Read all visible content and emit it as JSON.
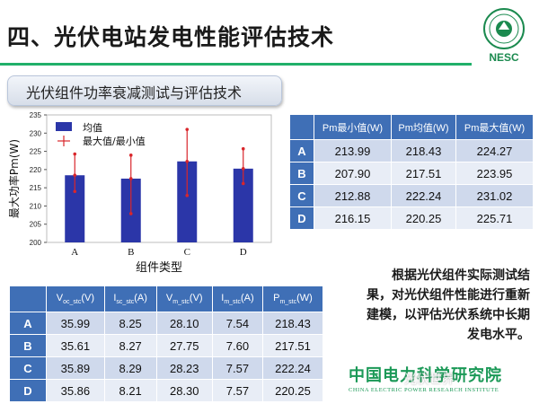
{
  "slide": {
    "title": "四、光伏电站发电性能评估技术",
    "subtitle": "光伏组件功率衰减测试与评估技术",
    "logo_text": "NESC",
    "note_lines": [
      "根据光伏组件实际测试结",
      "果，对光伏组件性能进行重新",
      "建模，以评估光伏系统中长期",
      "发电水平。"
    ],
    "institute_cn": "中国电力科学研究院",
    "institute_en": "CHINA ELECTRIC POWER RESEARCH INSTITUTE",
    "watermark": "光伏世界",
    "colors": {
      "title_line": "#20b06a",
      "bar": "#2b36a8",
      "errorbar": "#d9262b",
      "table_header": "#3f6fb6",
      "green_text": "#1b9957"
    }
  },
  "chart_data": {
    "type": "bar",
    "categories": [
      "A",
      "B",
      "C",
      "D"
    ],
    "series": [
      {
        "name": "均值",
        "values": [
          218.43,
          217.51,
          222.24,
          220.25
        ]
      },
      {
        "name": "最大值/最小值",
        "min": [
          213.99,
          207.9,
          212.88,
          216.15
        ],
        "max": [
          224.27,
          223.95,
          231.02,
          225.71
        ]
      }
    ],
    "xlabel": "组件类型",
    "ylabel": "最大功率Pm(W)",
    "ylim": [
      200,
      235
    ],
    "yticks": [
      200,
      205,
      210,
      215,
      220,
      225,
      230,
      235
    ],
    "legend_position": "top-left",
    "grid": false
  },
  "table_pm": {
    "headers": [
      "",
      "Pm最小值(W)",
      "Pm均值(W)",
      "Pm最大值(W)"
    ],
    "rows": [
      [
        "A",
        "213.99",
        "218.43",
        "224.27"
      ],
      [
        "B",
        "207.90",
        "217.51",
        "223.95"
      ],
      [
        "C",
        "212.88",
        "222.24",
        "231.02"
      ],
      [
        "D",
        "216.15",
        "220.25",
        "225.71"
      ]
    ]
  },
  "table_stc": {
    "headers": [
      {
        "main": "",
        "sub": "",
        "unit": ""
      },
      {
        "main": "V",
        "sub": "oc_stc",
        "unit": "(V)"
      },
      {
        "main": "I",
        "sub": "sc_stc",
        "unit": "(A)"
      },
      {
        "main": "V",
        "sub": "m_stc",
        "unit": "(V)"
      },
      {
        "main": "I",
        "sub": "m_stc",
        "unit": "(A)"
      },
      {
        "main": "P",
        "sub": "m_stc",
        "unit": "(W)"
      }
    ],
    "rows": [
      [
        "A",
        "35.99",
        "8.25",
        "28.10",
        "7.54",
        "218.43"
      ],
      [
        "B",
        "35.61",
        "8.27",
        "27.75",
        "7.60",
        "217.51"
      ],
      [
        "C",
        "35.89",
        "8.29",
        "28.23",
        "7.57",
        "222.24"
      ],
      [
        "D",
        "35.86",
        "8.21",
        "28.30",
        "7.57",
        "220.25"
      ]
    ]
  }
}
